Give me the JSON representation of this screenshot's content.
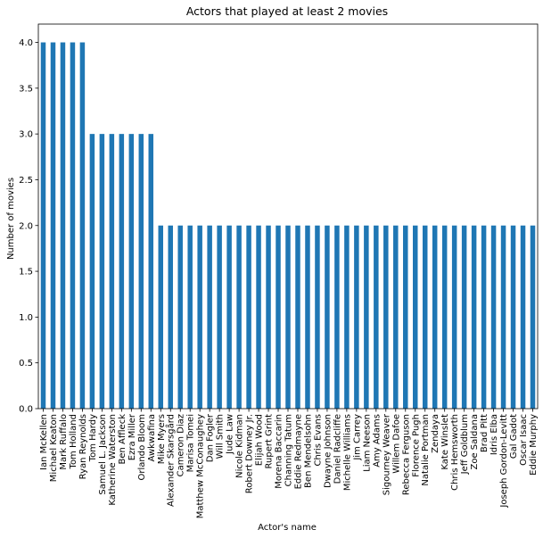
{
  "chart_data": {
    "type": "bar",
    "title": "Actors that played at least 2 movies",
    "xlabel": "Actor's name",
    "ylabel": "Number of movies",
    "ylim": [
      0,
      4.2
    ],
    "yticks": [
      "0.0",
      "0.5",
      "1.0",
      "1.5",
      "2.0",
      "2.5",
      "3.0",
      "3.5",
      "4.0"
    ],
    "grid": false,
    "bar_color": "#1f77b4",
    "categories": [
      "Ian McKellen",
      "Michael Keaton",
      "Mark Ruffalo",
      "Tom Holland",
      "Ryan Reynolds",
      "Tom Hardy",
      "Samuel L. Jackson",
      "Katherine Waterston",
      "Ben Affleck",
      "Ezra Miller",
      "Orlando Bloom",
      "Awkwafina",
      "Mike Myers",
      "Alexander Skarsgård",
      "Cameron Diaz",
      "Marisa Tomei",
      "Matthew McConaughey",
      "Dan Fogler",
      "Will Smith",
      "Jude Law",
      "Nicole Kidman",
      "Robert Downey Jr.",
      "Elijah Wood",
      "Rupert Grint",
      "Morena Baccarin",
      "Channing Tatum",
      "Eddie Redmayne",
      "Ben Mendelsohn",
      "Chris Evans",
      "Dwayne Johnson",
      "Daniel Radcliffe",
      "Michelle Williams",
      "Jim Carrey",
      "Liam Neeson",
      "Amy Adams",
      "Sigourney Weaver",
      "Willem Dafoe",
      "Rebecca Ferguson",
      "Florence Pugh",
      "Natalie Portman",
      "Zendaya",
      "Kate Winslet",
      "Chris Hemsworth",
      "Jeff Goldblum",
      "Zoe Saldana",
      "Brad Pitt",
      "Idris Elba",
      "Joseph Gordon-Levitt",
      "Gal Gadot",
      "Oscar Isaac",
      "Eddie Murphy"
    ],
    "values": [
      4,
      4,
      4,
      4,
      4,
      3,
      3,
      3,
      3,
      3,
      3,
      3,
      2,
      2,
      2,
      2,
      2,
      2,
      2,
      2,
      2,
      2,
      2,
      2,
      2,
      2,
      2,
      2,
      2,
      2,
      2,
      2,
      2,
      2,
      2,
      2,
      2,
      2,
      2,
      2,
      2,
      2,
      2,
      2,
      2,
      2,
      2,
      2,
      2,
      2,
      2
    ]
  }
}
